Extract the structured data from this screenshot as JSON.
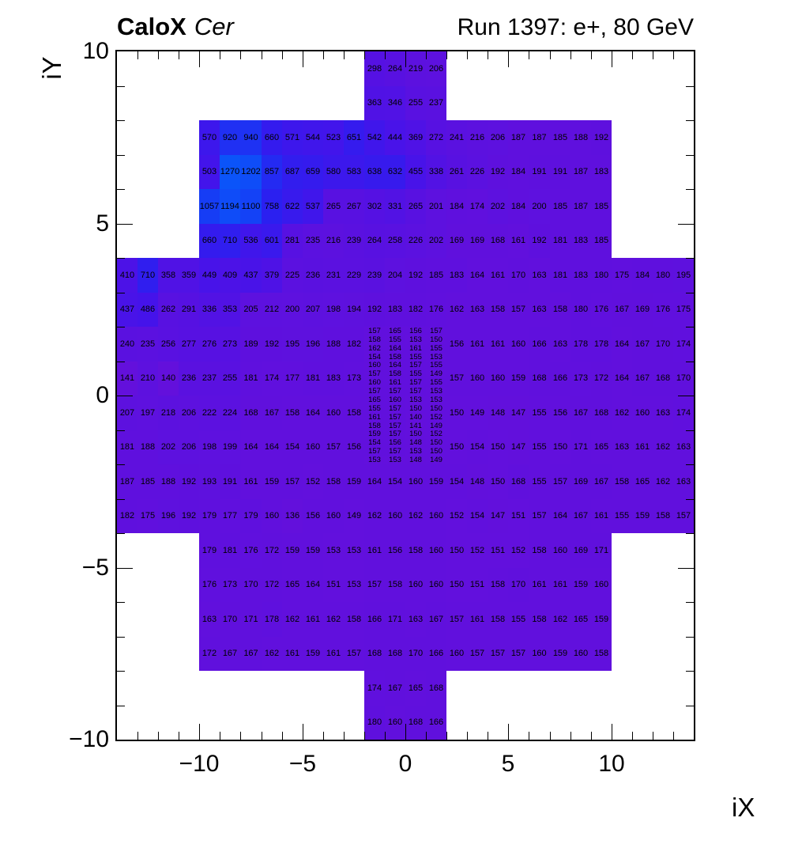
{
  "chart_data": {
    "type": "heatmap",
    "title": "CaloX Cer",
    "title_bold": "CaloX",
    "title_italic": "Cer",
    "subtitle": "Run 1397: e+, 80 GeV",
    "xlabel": "iX",
    "ylabel": "iY",
    "xlim": [
      -14,
      14
    ],
    "ylim": [
      -10,
      10
    ],
    "x_major_ticks": [
      -10,
      -5,
      0,
      5,
      10
    ],
    "x_tick_labels": [
      "−10",
      "−5",
      "0",
      "5",
      "10"
    ],
    "y_major_ticks": [
      10,
      5,
      0,
      -5,
      -10
    ],
    "y_tick_labels": [
      "10",
      "5",
      "0",
      "−5",
      "−10"
    ],
    "minor_tick_step": 1,
    "z_range": [
      136,
      1270
    ],
    "palette": [
      [
        0,
        "#6310DC"
      ],
      [
        0.3,
        "#4613EA"
      ],
      [
        0.55,
        "#2B20F0"
      ],
      [
        0.8,
        "#173CF5"
      ],
      [
        1,
        "#0B54F9"
      ]
    ],
    "grid": false,
    "legend": "none",
    "segments": [
      {
        "y": 10,
        "h": 1,
        "x0": -2,
        "w": 1,
        "values": [
          298,
          264,
          219,
          206
        ]
      },
      {
        "y": 9,
        "h": 1,
        "x0": -2,
        "w": 1,
        "values": [
          363,
          346,
          255,
          237
        ]
      },
      {
        "y": 8,
        "h": 1,
        "x0": -10,
        "w": 1,
        "values": [
          570,
          920,
          940,
          660,
          571,
          544,
          523,
          651,
          542,
          444,
          369,
          272,
          241,
          216,
          206,
          187,
          187,
          185,
          188,
          192
        ]
      },
      {
        "y": 7,
        "h": 1,
        "x0": -10,
        "w": 1,
        "values": [
          503,
          1270,
          1202,
          857,
          687,
          659,
          580,
          583,
          638,
          632,
          455,
          338,
          261,
          226,
          192,
          184,
          191,
          191,
          187,
          183
        ]
      },
      {
        "y": 6,
        "h": 1,
        "x0": -10,
        "w": 1,
        "values": [
          1057,
          1194,
          1100,
          758,
          622,
          537,
          265,
          267,
          302,
          331,
          265,
          201,
          184,
          174,
          202,
          184,
          200,
          185,
          187,
          185
        ]
      },
      {
        "y": 5,
        "h": 1,
        "x0": -10,
        "w": 1,
        "values": [
          660,
          710,
          536,
          601,
          281,
          235,
          216,
          239,
          264,
          258,
          226,
          202,
          169,
          169,
          168,
          161,
          192,
          181,
          183,
          185
        ]
      },
      {
        "y": 4,
        "h": 1,
        "x0": -14,
        "w": 1,
        "values": [
          410,
          710,
          358,
          359,
          449,
          409,
          437,
          379,
          225,
          236,
          231,
          229,
          239,
          204,
          192,
          185,
          183,
          164,
          161,
          170,
          163,
          181,
          183,
          180,
          175,
          184,
          180,
          195
        ]
      },
      {
        "y": 3,
        "h": 1,
        "x0": -14,
        "w": 1,
        "values": [
          437,
          486,
          262,
          291,
          336,
          353,
          205,
          212,
          200,
          207,
          198,
          194,
          192,
          183,
          182,
          176,
          162,
          163,
          158,
          157,
          163,
          158,
          180,
          176,
          167,
          169,
          176,
          175
        ]
      },
      {
        "y": 2,
        "h": 1,
        "x0": -14,
        "w": 1,
        "values": [
          240,
          235,
          256,
          277,
          276,
          273,
          189,
          192,
          195,
          196,
          188,
          182
        ]
      },
      {
        "y": 2,
        "h": 1,
        "x0": 2,
        "w": 1,
        "values": [
          156,
          161,
          161,
          160,
          166,
          163,
          178,
          178,
          164,
          167,
          170,
          174
        ]
      },
      {
        "y": 1,
        "h": 1,
        "x0": -14,
        "w": 1,
        "values": [
          141,
          210,
          140,
          236,
          237,
          255,
          181,
          174,
          177,
          181,
          183,
          173
        ]
      },
      {
        "y": 1,
        "h": 1,
        "x0": 2,
        "w": 1,
        "values": [
          157,
          160,
          160,
          159,
          168,
          166,
          173,
          172,
          164,
          167,
          168,
          170
        ]
      },
      {
        "y": 0,
        "h": 1,
        "x0": -14,
        "w": 1,
        "values": [
          207,
          197,
          218,
          206,
          222,
          224,
          168,
          167,
          158,
          164,
          160,
          158
        ]
      },
      {
        "y": 0,
        "h": 1,
        "x0": 2,
        "w": 1,
        "values": [
          150,
          149,
          148,
          147,
          155,
          156,
          167,
          168,
          162,
          160,
          163,
          174
        ]
      },
      {
        "y": -1,
        "h": 1,
        "x0": -14,
        "w": 1,
        "values": [
          181,
          188,
          202,
          206,
          198,
          199,
          164,
          164,
          154,
          160,
          157,
          156
        ]
      },
      {
        "y": -1,
        "h": 1,
        "x0": 2,
        "w": 1,
        "values": [
          150,
          154,
          150,
          147,
          155,
          150,
          171,
          165,
          163,
          161,
          162,
          163
        ]
      },
      {
        "y": -2,
        "h": 1,
        "x0": -14,
        "w": 1,
        "values": [
          187,
          185,
          188,
          192,
          193,
          191,
          161,
          159,
          157,
          152,
          158,
          159,
          164,
          154,
          160,
          159,
          154,
          148,
          150,
          168,
          155,
          157,
          169,
          167,
          158,
          165,
          162,
          163
        ]
      },
      {
        "y": -3,
        "h": 1,
        "x0": -14,
        "w": 1,
        "values": [
          182,
          175,
          196,
          192,
          179,
          177,
          179,
          160,
          136,
          156,
          160,
          149,
          162,
          160,
          162,
          160,
          152,
          154,
          147,
          151,
          157,
          164,
          167,
          161,
          155,
          159,
          158,
          157
        ]
      },
      {
        "y": -4,
        "h": 1,
        "x0": -10,
        "w": 1,
        "values": [
          179,
          181,
          176,
          172,
          159,
          159,
          153,
          153,
          161,
          156,
          158,
          160,
          150,
          152,
          151,
          152,
          158,
          160,
          169,
          171
        ]
      },
      {
        "y": -5,
        "h": 1,
        "x0": -10,
        "w": 1,
        "values": [
          176,
          173,
          170,
          172,
          165,
          164,
          151,
          153,
          157,
          158,
          160,
          160,
          150,
          151,
          158,
          170,
          161,
          161,
          159,
          160
        ]
      },
      {
        "y": -6,
        "h": 1,
        "x0": -10,
        "w": 1,
        "values": [
          163,
          170,
          171,
          178,
          162,
          161,
          162,
          158,
          166,
          171,
          163,
          167,
          157,
          161,
          158,
          155,
          158,
          162,
          165,
          159
        ]
      },
      {
        "y": -7,
        "h": 1,
        "x0": -10,
        "w": 1,
        "values": [
          172,
          167,
          167,
          162,
          161,
          159,
          161,
          157,
          168,
          168,
          170,
          166,
          160,
          157,
          157,
          157,
          160,
          159,
          160,
          158
        ]
      },
      {
        "y": -8,
        "h": 1,
        "x0": -2,
        "w": 1,
        "values": [
          174,
          167,
          165,
          168
        ]
      },
      {
        "y": -9,
        "h": 1,
        "x0": -2,
        "w": 1,
        "values": [
          180,
          160,
          168,
          166
        ]
      },
      {
        "y": 2.0,
        "h": 0.25,
        "x0": -2,
        "w": 1,
        "small": true,
        "values": [
          157,
          165,
          156,
          157
        ]
      },
      {
        "y": 1.75,
        "h": 0.25,
        "x0": -2,
        "w": 1,
        "small": true,
        "values": [
          158,
          155,
          153,
          150
        ]
      },
      {
        "y": 1.5,
        "h": 0.25,
        "x0": -2,
        "w": 1,
        "small": true,
        "values": [
          162,
          164,
          161,
          155
        ]
      },
      {
        "y": 1.25,
        "h": 0.25,
        "x0": -2,
        "w": 1,
        "small": true,
        "values": [
          154,
          158,
          155,
          153
        ]
      },
      {
        "y": 1.0,
        "h": 0.25,
        "x0": -2,
        "w": 1,
        "small": true,
        "values": [
          160,
          164,
          157,
          155
        ]
      },
      {
        "y": 0.75,
        "h": 0.25,
        "x0": -2,
        "w": 1,
        "small": true,
        "values": [
          157,
          158,
          155,
          149
        ]
      },
      {
        "y": 0.5,
        "h": 0.25,
        "x0": -2,
        "w": 1,
        "small": true,
        "values": [
          160,
          161,
          157,
          155
        ]
      },
      {
        "y": 0.25,
        "h": 0.25,
        "x0": -2,
        "w": 1,
        "small": true,
        "values": [
          157,
          157,
          157,
          153
        ]
      },
      {
        "y": 0.0,
        "h": 0.25,
        "x0": -2,
        "w": 1,
        "small": true,
        "values": [
          165,
          160,
          153,
          153
        ]
      },
      {
        "y": -0.25,
        "h": 0.25,
        "x0": -2,
        "w": 1,
        "small": true,
        "values": [
          155,
          157,
          150,
          150
        ]
      },
      {
        "y": -0.5,
        "h": 0.25,
        "x0": -2,
        "w": 1,
        "small": true,
        "values": [
          161,
          157,
          140,
          152
        ]
      },
      {
        "y": -0.75,
        "h": 0.25,
        "x0": -2,
        "w": 1,
        "small": true,
        "values": [
          158,
          157,
          141,
          149
        ]
      },
      {
        "y": -1.0,
        "h": 0.25,
        "x0": -2,
        "w": 1,
        "small": true,
        "values": [
          159,
          157,
          150,
          152
        ]
      },
      {
        "y": -1.25,
        "h": 0.25,
        "x0": -2,
        "w": 1,
        "small": true,
        "values": [
          154,
          156,
          148,
          150
        ]
      },
      {
        "y": -1.5,
        "h": 0.25,
        "x0": -2,
        "w": 1,
        "small": true,
        "values": [
          157,
          157,
          153,
          150
        ]
      },
      {
        "y": -1.75,
        "h": 0.25,
        "x0": -2,
        "w": 1,
        "small": true,
        "values": [
          153,
          153,
          148,
          149
        ]
      }
    ]
  }
}
